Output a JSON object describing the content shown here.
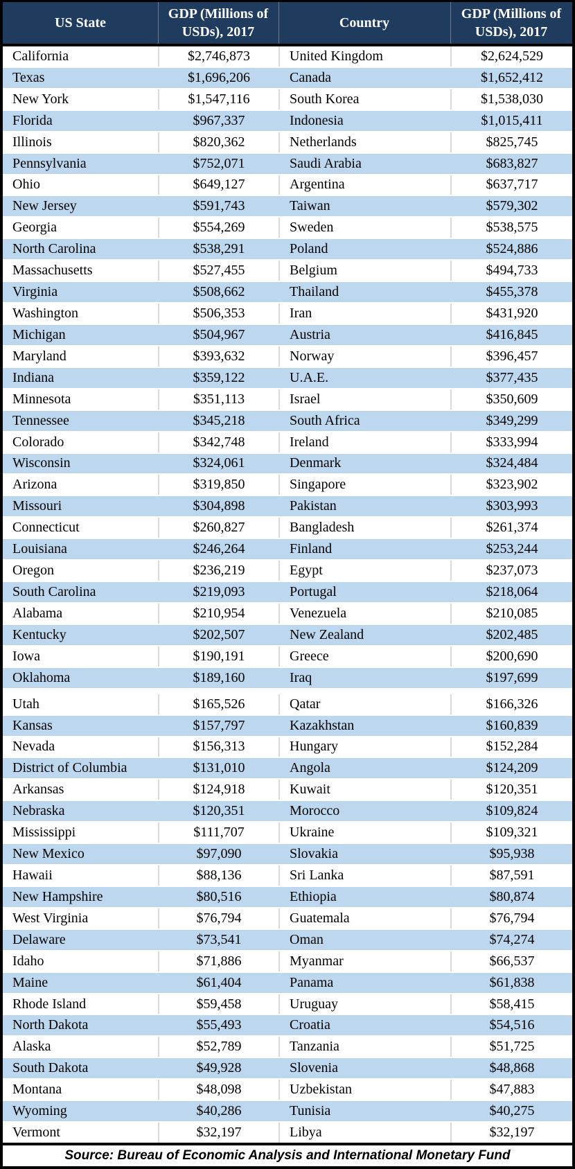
{
  "colors": {
    "header_bg": "#1F3C5F",
    "stripe": "#BDD7EE",
    "grid": "#D9D9D9",
    "border": "#000000"
  },
  "chart_data": {
    "type": "table",
    "columns": [
      "US State",
      "GDP (Millions of USDs), 2017",
      "Country",
      "GDP (Millions of USDs), 2017"
    ],
    "rows": [
      [
        "California",
        "$2,746,873",
        "United Kingdom",
        "$2,624,529"
      ],
      [
        "Texas",
        "$1,696,206",
        "Canada",
        "$1,652,412"
      ],
      [
        "New York",
        "$1,547,116",
        "South Korea",
        "$1,538,030"
      ],
      [
        "Florida",
        "$967,337",
        "Indonesia",
        "$1,015,411"
      ],
      [
        "Illinois",
        "$820,362",
        "Netherlands",
        "$825,745"
      ],
      [
        "Pennsylvania",
        "$752,071",
        "Saudi Arabia",
        "$683,827"
      ],
      [
        "Ohio",
        "$649,127",
        "Argentina",
        "$637,717"
      ],
      [
        "New Jersey",
        "$591,743",
        "Taiwan",
        "$579,302"
      ],
      [
        "Georgia",
        "$554,269",
        "Sweden",
        "$538,575"
      ],
      [
        "North Carolina",
        "$538,291",
        "Poland",
        "$524,886"
      ],
      [
        "Massachusetts",
        "$527,455",
        "Belgium",
        "$494,733"
      ],
      [
        "Virginia",
        "$508,662",
        "Thailand",
        "$455,378"
      ],
      [
        "Washington",
        "$506,353",
        "Iran",
        "$431,920"
      ],
      [
        "Michigan",
        "$504,967",
        "Austria",
        "$416,845"
      ],
      [
        "Maryland",
        "$393,632",
        "Norway",
        "$396,457"
      ],
      [
        "Indiana",
        "$359,122",
        "U.A.E.",
        "$377,435"
      ],
      [
        "Minnesota",
        "$351,113",
        "Israel",
        "$350,609"
      ],
      [
        "Tennessee",
        "$345,218",
        "South Africa",
        "$349,299"
      ],
      [
        "Colorado",
        "$342,748",
        "Ireland",
        "$333,994"
      ],
      [
        "Wisconsin",
        "$324,061",
        "Denmark",
        "$324,484"
      ],
      [
        "Arizona",
        "$319,850",
        "Singapore",
        "$323,902"
      ],
      [
        "Missouri",
        "$304,898",
        "Pakistan",
        "$303,993"
      ],
      [
        "Connecticut",
        "$260,827",
        "Bangladesh",
        "$261,374"
      ],
      [
        "Louisiana",
        "$246,264",
        "Finland",
        "$253,244"
      ],
      [
        "Oregon",
        "$236,219",
        "Egypt",
        "$237,073"
      ],
      [
        "South Carolina",
        "$219,093",
        "Portugal",
        "$218,064"
      ],
      [
        "Alabama",
        "$210,954",
        "Venezuela",
        "$210,085"
      ],
      [
        "Kentucky",
        "$202,507",
        "New Zealand",
        "$202,485"
      ],
      [
        "Iowa",
        "$190,191",
        "Greece",
        "$200,690"
      ],
      [
        "Oklahoma",
        "$189,160",
        "Iraq",
        "$197,699"
      ],
      [
        "Utah",
        "$165,526",
        "Qatar",
        "$166,326"
      ],
      [
        "Kansas",
        "$157,797",
        "Kazakhstan",
        "$160,839"
      ],
      [
        "Nevada",
        "$156,313",
        "Hungary",
        "$152,284"
      ],
      [
        "District of Columbia",
        "$131,010",
        "Angola",
        "$124,209"
      ],
      [
        "Arkansas",
        "$124,918",
        "Kuwait",
        "$120,351"
      ],
      [
        "Nebraska",
        "$120,351",
        "Morocco",
        "$109,824"
      ],
      [
        "Mississippi",
        "$111,707",
        "Ukraine",
        "$109,321"
      ],
      [
        "New Mexico",
        "$97,090",
        "Slovakia",
        "$95,938"
      ],
      [
        "Hawaii",
        "$88,136",
        "Sri Lanka",
        "$87,591"
      ],
      [
        "New Hampshire",
        "$80,516",
        "Ethiopia",
        "$80,874"
      ],
      [
        "West Virginia",
        "$76,794",
        "Guatemala",
        "$76,794"
      ],
      [
        "Delaware",
        "$73,541",
        "Oman",
        "$74,274"
      ],
      [
        "Idaho",
        "$71,886",
        "Myanmar",
        "$66,537"
      ],
      [
        "Maine",
        "$61,404",
        "Panama",
        "$61,838"
      ],
      [
        "Rhode Island",
        "$59,458",
        "Uruguay",
        "$58,415"
      ],
      [
        "North Dakota",
        "$55,493",
        "Croatia",
        "$54,516"
      ],
      [
        "Alaska",
        "$52,789",
        "Tanzania",
        "$51,725"
      ],
      [
        "South Dakota",
        "$49,928",
        "Slovenia",
        "$48,868"
      ],
      [
        "Montana",
        "$48,098",
        "Uzbekistan",
        "$47,883"
      ],
      [
        "Wyoming",
        "$40,286",
        "Tunisia",
        "$40,275"
      ],
      [
        "Vermont",
        "$32,197",
        "Libya",
        "$32,197"
      ]
    ],
    "page_break_after_row": 30,
    "footnote": "Source: Bureau of Economic Analysis and International Monetary Fund",
    "legend_position": "none",
    "grid": "light vertical separators on white rows, alternating row striping"
  }
}
